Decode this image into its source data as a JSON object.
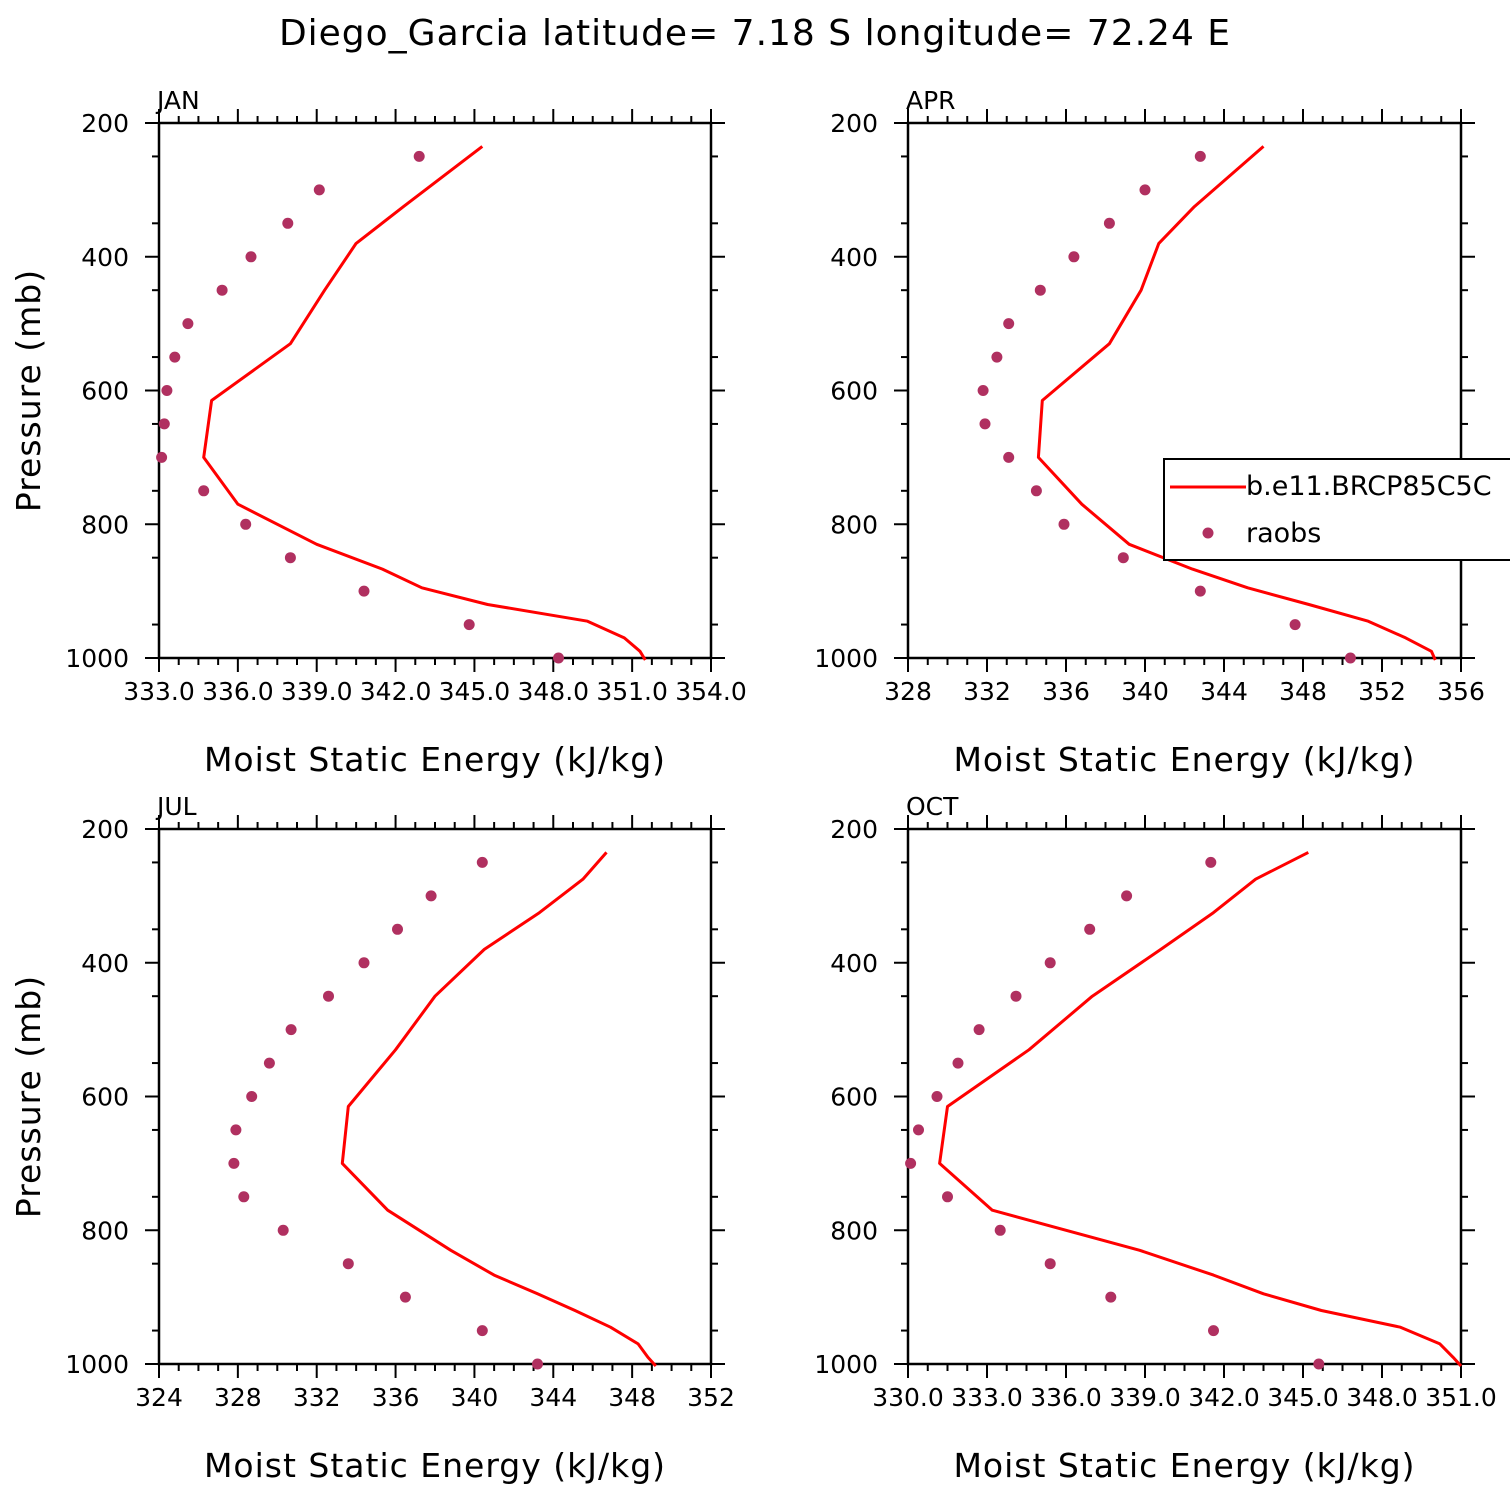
{
  "figure": {
    "title": "Diego_Garcia  latitude= 7.18 S longitude= 72.24 E"
  },
  "colors": {
    "model": "#ff0000",
    "obs": "#b03060",
    "axis": "#000000"
  },
  "legend": {
    "placement": "right-middle (APR panel)",
    "model_label": "b.e11.BRCP85C5C",
    "obs_label": "raobs"
  },
  "chart_data": [
    {
      "type": "line",
      "panel": "JAN",
      "title": "JAN",
      "xlabel": "Moist Static Energy (kJ/kg)",
      "ylabel": "Pressure (mb)",
      "xlim": [
        333.0,
        354.0
      ],
      "ylim": [
        1000,
        200
      ],
      "xticks": [
        "333.0",
        "336.0",
        "339.0",
        "342.0",
        "345.0",
        "348.0",
        "351.0",
        "354.0"
      ],
      "yticks": [
        "200",
        "400",
        "600",
        "800",
        "1000"
      ],
      "series": [
        {
          "name": "b.e11.BRCP85C5C",
          "kind": "line",
          "p": [
            1003,
            990,
            970,
            945,
            920,
            895,
            867,
            830,
            770,
            700,
            615,
            530,
            450,
            380,
            325,
            235
          ],
          "x": [
            351.5,
            351.3,
            350.7,
            349.3,
            345.5,
            343.0,
            341.5,
            339.0,
            336.0,
            334.7,
            335.0,
            338.0,
            339.3,
            340.5,
            342.3,
            345.3
          ]
        },
        {
          "name": "raobs",
          "kind": "scatter",
          "p": [
            250,
            300,
            350,
            400,
            450,
            500,
            550,
            600,
            650,
            700,
            750,
            800,
            850,
            900,
            950,
            1000
          ],
          "x": [
            342.9,
            339.1,
            337.9,
            336.5,
            335.4,
            334.1,
            333.6,
            333.3,
            333.2,
            333.1,
            334.7,
            336.3,
            338.0,
            340.8,
            344.8,
            348.2
          ]
        }
      ]
    },
    {
      "type": "line",
      "panel": "APR",
      "title": "APR",
      "xlabel": "Moist Static Energy (kJ/kg)",
      "ylabel": "",
      "xlim": [
        328,
        356
      ],
      "ylim": [
        1000,
        200
      ],
      "xticks": [
        "328",
        "332",
        "336",
        "340",
        "344",
        "348",
        "352",
        "356"
      ],
      "yticks": [
        "200",
        "400",
        "600",
        "800",
        "1000"
      ],
      "series": [
        {
          "name": "b.e11.BRCP85C5C",
          "kind": "line",
          "p": [
            1003,
            990,
            970,
            945,
            920,
            895,
            867,
            830,
            770,
            700,
            615,
            530,
            450,
            380,
            325,
            235
          ],
          "x": [
            354.7,
            354.5,
            353.2,
            351.3,
            348.3,
            345.2,
            342.4,
            339.2,
            336.8,
            334.6,
            334.8,
            338.2,
            339.8,
            340.7,
            342.5,
            346.0
          ]
        },
        {
          "name": "raobs",
          "kind": "scatter",
          "p": [
            250,
            300,
            350,
            400,
            450,
            500,
            550,
            600,
            650,
            700,
            750,
            800,
            850,
            900,
            950,
            1000
          ],
          "x": [
            342.8,
            340.0,
            338.2,
            336.4,
            334.7,
            333.1,
            332.5,
            331.8,
            331.9,
            333.1,
            334.5,
            335.9,
            338.9,
            342.8,
            347.6,
            350.4
          ]
        }
      ]
    },
    {
      "type": "line",
      "panel": "JUL",
      "title": "JUL",
      "xlabel": "Moist Static Energy (kJ/kg)",
      "ylabel": "Pressure (mb)",
      "xlim": [
        324,
        352
      ],
      "ylim": [
        1000,
        200
      ],
      "xticks": [
        "324",
        "328",
        "332",
        "336",
        "340",
        "344",
        "348",
        "352"
      ],
      "yticks": [
        "200",
        "400",
        "600",
        "800",
        "1000"
      ],
      "series": [
        {
          "name": "b.e11.BRCP85C5C",
          "kind": "line",
          "p": [
            1003,
            990,
            970,
            945,
            920,
            895,
            867,
            830,
            770,
            700,
            615,
            530,
            450,
            380,
            325,
            275,
            235
          ],
          "x": [
            349.2,
            348.8,
            348.3,
            346.9,
            345.1,
            343.2,
            341.0,
            338.8,
            335.6,
            333.3,
            333.6,
            336.0,
            338.0,
            340.5,
            343.3,
            345.5,
            346.7
          ]
        },
        {
          "name": "raobs",
          "kind": "scatter",
          "p": [
            250,
            300,
            350,
            400,
            450,
            500,
            550,
            600,
            650,
            700,
            750,
            800,
            850,
            900,
            950,
            1000
          ],
          "x": [
            340.4,
            337.8,
            336.1,
            334.4,
            332.6,
            330.7,
            329.6,
            328.7,
            327.9,
            327.8,
            328.3,
            330.3,
            333.6,
            336.5,
            340.4,
            343.2
          ]
        }
      ]
    },
    {
      "type": "line",
      "panel": "OCT",
      "title": "OCT",
      "xlabel": "Moist Static Energy (kJ/kg)",
      "ylabel": "",
      "xlim": [
        330.0,
        351.0
      ],
      "ylim": [
        1000,
        200
      ],
      "xticks": [
        "330.0",
        "333.0",
        "336.0",
        "339.0",
        "342.0",
        "345.0",
        "348.0",
        "351.0"
      ],
      "yticks": [
        "200",
        "400",
        "600",
        "800",
        "1000"
      ],
      "series": [
        {
          "name": "b.e11.BRCP85C5C",
          "kind": "line",
          "p": [
            1003,
            990,
            970,
            945,
            920,
            895,
            867,
            830,
            770,
            700,
            615,
            530,
            450,
            380,
            325,
            275,
            235
          ],
          "x": [
            351.0,
            350.7,
            350.2,
            348.7,
            345.7,
            343.5,
            341.6,
            338.8,
            333.2,
            331.2,
            331.5,
            334.6,
            337.0,
            339.6,
            341.6,
            343.2,
            345.2
          ]
        },
        {
          "name": "raobs",
          "kind": "scatter",
          "p": [
            250,
            300,
            350,
            400,
            450,
            500,
            550,
            600,
            650,
            700,
            750,
            800,
            850,
            900,
            950,
            1000
          ],
          "x": [
            341.5,
            338.3,
            336.9,
            335.4,
            334.1,
            332.7,
            331.9,
            331.1,
            330.4,
            330.1,
            331.5,
            333.5,
            335.4,
            337.7,
            341.6,
            345.6
          ]
        }
      ]
    }
  ]
}
